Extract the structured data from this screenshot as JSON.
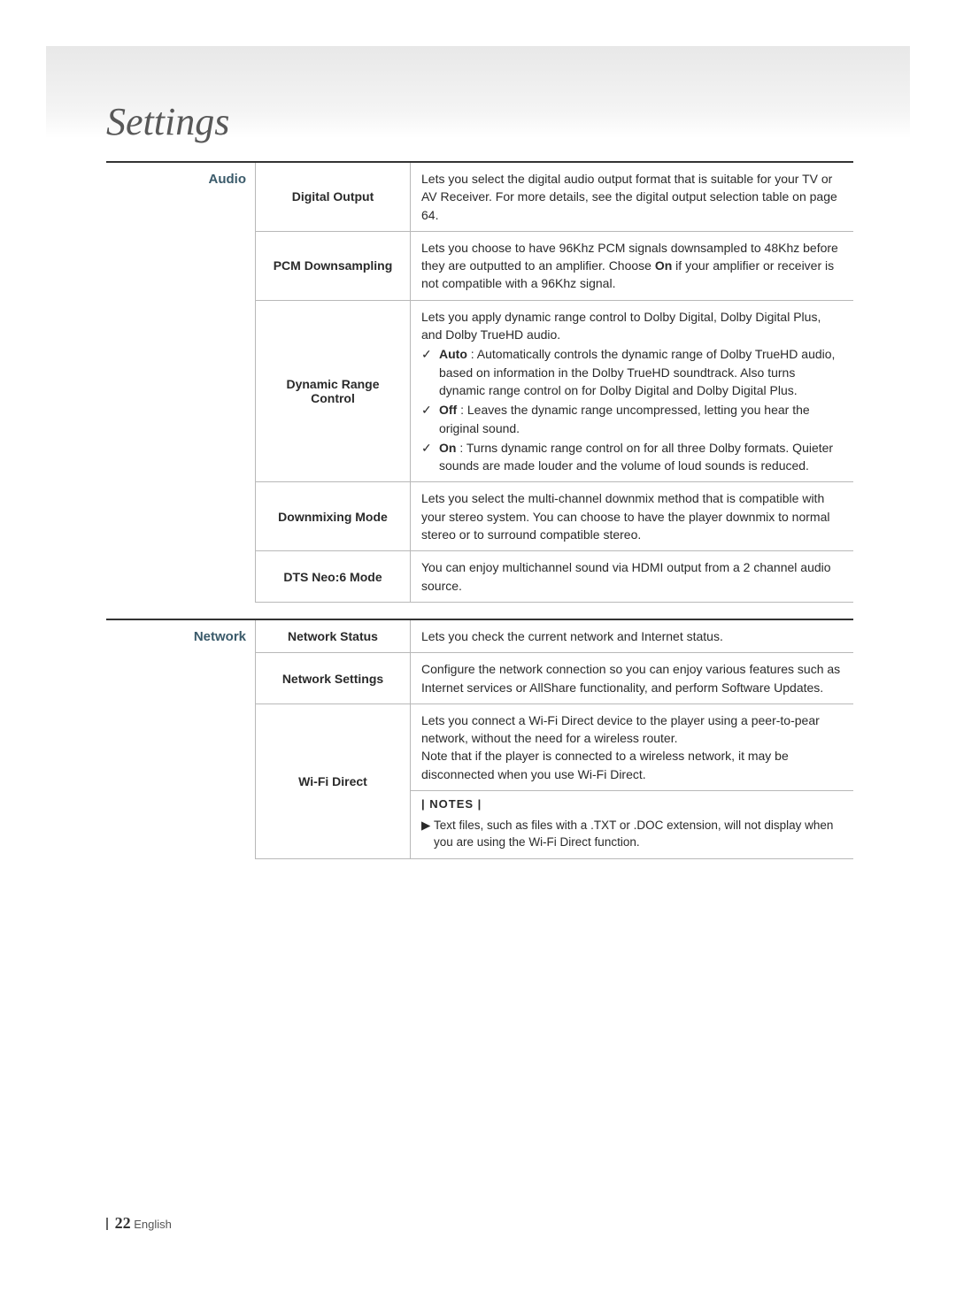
{
  "page": {
    "title": "Settings",
    "pageNumber": "22",
    "langLabel": "English",
    "colors": {
      "title": "#585858",
      "category": "#3a5a6a",
      "rule": "#b8b8b8",
      "topRule": "#333333",
      "headerGradTop": "#e8e8e8",
      "headerGradBottom": "#ffffff",
      "text": "#2a2a2a"
    },
    "fonts": {
      "titleFamily": "Georgia",
      "bodyFamily": "Arial",
      "titleSize": 44,
      "categorySize": 15,
      "labelSize": 14,
      "bodySize": 14
    }
  },
  "sections": {
    "audio": {
      "category": "Audio",
      "rows": {
        "digitalOutput": {
          "label": "Digital Output",
          "desc": "Lets you select the digital audio output format that is suitable for your TV or AV Receiver. For more details, see the digital output selection table on page 64."
        },
        "pcmDownsampling": {
          "label": "PCM Downsampling",
          "descPre": "Lets you choose to have 96Khz PCM signals downsampled to 48Khz before they are outputted to an amplifier. Choose ",
          "descBold": "On",
          "descPost": " if your amplifier or receiver is not compatible with a 96Khz signal."
        },
        "drc": {
          "label": "Dynamic Range Control",
          "intro": "Lets you apply dynamic range control to Dolby Digital, Dolby Digital Plus, and Dolby TrueHD audio.",
          "items": {
            "auto": {
              "name": "Auto",
              "text": " : Automatically controls the dynamic range of Dolby TrueHD audio, based on information in the Dolby TrueHD soundtrack. Also turns dynamic range control on for Dolby Digital and Dolby Digital Plus."
            },
            "off": {
              "name": "Off",
              "text": " : Leaves the dynamic range uncompressed, letting you hear the original sound."
            },
            "on": {
              "name": "On",
              "text": " : Turns dynamic range control on for all three Dolby formats. Quieter sounds are made louder and the volume of loud sounds is reduced."
            }
          }
        },
        "downmix": {
          "label": "Downmixing Mode",
          "desc": "Lets you select the multi-channel downmix method that is compatible with your stereo system. You can choose to have the player downmix to normal stereo or to surround compatible stereo."
        },
        "dtsNeo6": {
          "label": "DTS Neo:6 Mode",
          "desc": "You can enjoy multichannel sound via HDMI output from a 2 channel audio source."
        }
      }
    },
    "network": {
      "category": "Network",
      "rows": {
        "status": {
          "label": "Network Status",
          "desc": "Lets you check the current network and Internet status."
        },
        "settings": {
          "label": "Network Settings",
          "desc": "Configure the network connection so you can enjoy various features such as Internet services or AllShare functionality, and perform Software Updates."
        },
        "wifiDirect": {
          "label": "Wi-Fi Direct",
          "desc": "Lets you connect a Wi-Fi Direct device to the player using a peer-to-pear network, without the need for a wireless router.\nNote that if the player is connected to a wireless network, it may be disconnected when you use Wi-Fi Direct.",
          "notesHeader": "| NOTES |",
          "note": "Text files, such as files with a .TXT or .DOC extension, will not display when you are using the Wi-Fi Direct function."
        }
      }
    }
  },
  "glyphs": {
    "check": "✓",
    "triangle": "▶"
  }
}
